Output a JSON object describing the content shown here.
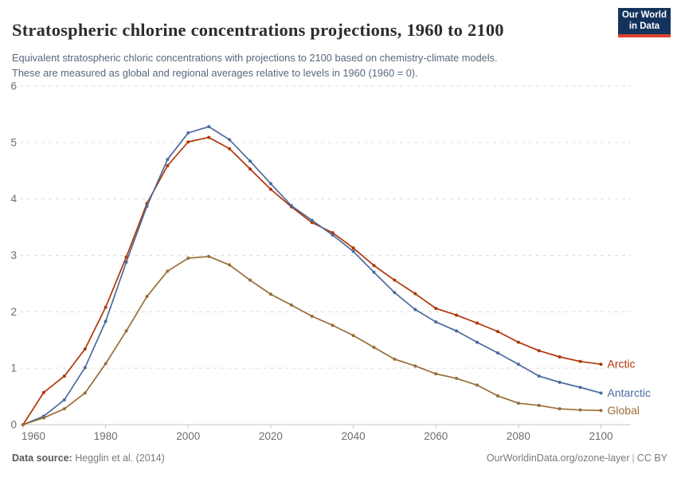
{
  "header": {
    "title": "Stratospheric chlorine concentrations projections, 1960 to 2100",
    "subtitle_line1": "Equivalent stratospheric chloric concentrations with projections to 2100 based on chemistry-climate models.",
    "subtitle_line2": "These are measured as global and regional averages relative to levels in 1960 (1960 = 0).",
    "logo_line1": "Our World",
    "logo_line2": "in Data"
  },
  "chart_data": {
    "type": "line",
    "title": "Stratospheric chlorine concentrations projections, 1960 to 2100",
    "xlabel": "",
    "ylabel": "",
    "xlim": [
      1960,
      2100
    ],
    "ylim": [
      0,
      6
    ],
    "xticks": [
      1960,
      1980,
      2000,
      2020,
      2040,
      2060,
      2080,
      2100
    ],
    "yticks": [
      0,
      1,
      2,
      3,
      4,
      5,
      6
    ],
    "grid": "horizontal-dashed",
    "legend_position": "end-of-line",
    "marker": "circle",
    "x": [
      1960,
      1965,
      1970,
      1975,
      1980,
      1985,
      1990,
      1995,
      2000,
      2005,
      2010,
      2015,
      2020,
      2025,
      2030,
      2035,
      2040,
      2045,
      2050,
      2055,
      2060,
      2065,
      2070,
      2075,
      2080,
      2085,
      2090,
      2095,
      2100
    ],
    "series": [
      {
        "name": "Arctic",
        "color": "#b13507",
        "values": [
          0,
          0.57,
          0.86,
          1.34,
          2.08,
          2.97,
          3.92,
          4.59,
          5.01,
          5.09,
          4.89,
          4.53,
          4.17,
          3.86,
          3.58,
          3.4,
          3.13,
          2.82,
          2.56,
          2.32,
          2.06,
          1.94,
          1.8,
          1.65,
          1.46,
          1.31,
          1.2,
          1.12,
          1.07
        ]
      },
      {
        "name": "Antarctic",
        "color": "#4c6a9c",
        "values": [
          0,
          0.15,
          0.44,
          1.01,
          1.83,
          2.88,
          3.87,
          4.7,
          5.17,
          5.28,
          5.05,
          4.67,
          4.27,
          3.88,
          3.62,
          3.36,
          3.07,
          2.7,
          2.34,
          2.04,
          1.82,
          1.66,
          1.46,
          1.27,
          1.07,
          0.86,
          0.75,
          0.66,
          0.56
        ]
      },
      {
        "name": "Global",
        "color": "#996d39",
        "values": [
          0,
          0.12,
          0.28,
          0.56,
          1.08,
          1.66,
          2.27,
          2.72,
          2.95,
          2.98,
          2.83,
          2.56,
          2.31,
          2.12,
          1.92,
          1.76,
          1.58,
          1.37,
          1.16,
          1.04,
          0.9,
          0.82,
          0.7,
          0.51,
          0.38,
          0.34,
          0.28,
          0.26,
          0.25
        ]
      }
    ],
    "colors": {
      "axis": "#c4c4c4",
      "grid": "#dcdcdc",
      "tick_text": "#6e6e6e"
    }
  },
  "footer": {
    "source_label": "Data source:",
    "source_value": " Hegglin et al. (2014)",
    "link": "OurWorldinData.org/ozone-layer",
    "separator": "|",
    "license": "CC BY"
  }
}
